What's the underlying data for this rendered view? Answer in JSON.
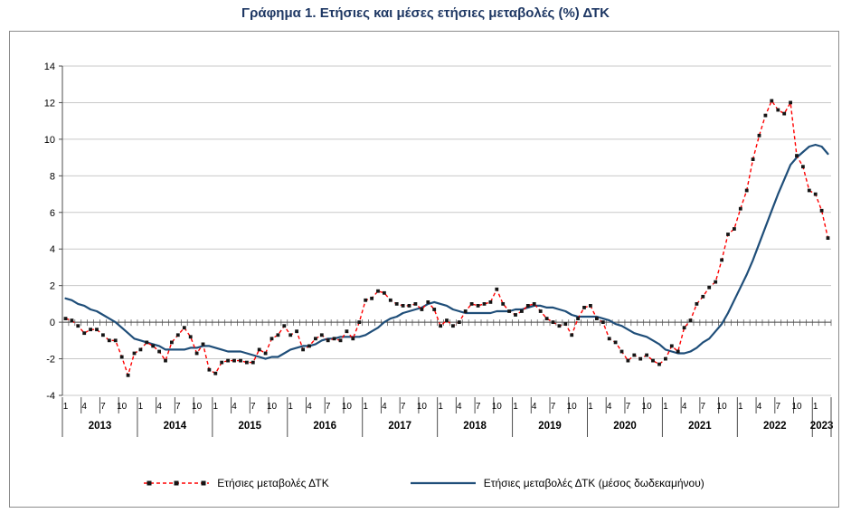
{
  "title": "Γράφημα 1. Ετήσιες και μέσες ετήσιες μεταβολές (%) ΔΤΚ",
  "legend": {
    "annual_label": "Ετήσιες μεταβολές ΔΤΚ",
    "average_label": "Ετήσιες μεταβολές ΔΤΚ (μέσος δωδεκαμήνου)"
  },
  "colors": {
    "title": "#1F3864",
    "annual_line": "#FF0000",
    "annual_marker": "#151515",
    "average_line": "#1F4E79",
    "gridline": "#C8C8C8",
    "axis": "#4D4D4D",
    "text": "#000000",
    "box_border": "#8C8C8C"
  },
  "chart_data": {
    "type": "line",
    "title": "Γράφημα 1. Ετήσιες και μέσες ετήσιες μεταβολές (%) ΔΤΚ",
    "xlabel": "",
    "ylabel": "",
    "ylim": [
      -4,
      14
    ],
    "ytick_step": 2,
    "grid": true,
    "legend_position": "bottom",
    "x_month_labels": [
      "1",
      "4",
      "7",
      "10"
    ],
    "years": [
      "2013",
      "2014",
      "2015",
      "2016",
      "2017",
      "2018",
      "2019",
      "2020",
      "2021",
      "2022",
      "2023"
    ],
    "months_per_year": [
      12,
      12,
      12,
      12,
      12,
      12,
      12,
      12,
      12,
      12,
      3
    ],
    "series": [
      {
        "name": "Ετήσιες μεταβολές ΔΤΚ",
        "style": "dashed-red-with-square-markers",
        "values": [
          0.2,
          0.1,
          -0.2,
          -0.6,
          -0.4,
          -0.4,
          -0.7,
          -1.0,
          -1.0,
          -1.9,
          -2.9,
          -1.7,
          -1.5,
          -1.1,
          -1.3,
          -1.6,
          -2.1,
          -1.1,
          -0.7,
          -0.3,
          -0.8,
          -1.7,
          -1.2,
          -2.6,
          -2.8,
          -2.2,
          -2.1,
          -2.1,
          -2.1,
          -2.2,
          -2.2,
          -1.5,
          -1.7,
          -0.9,
          -0.7,
          -0.2,
          -0.7,
          -0.5,
          -1.5,
          -1.3,
          -0.9,
          -0.7,
          -1.0,
          -0.9,
          -1.0,
          -0.5,
          -0.9,
          0.0,
          1.2,
          1.3,
          1.7,
          1.6,
          1.2,
          1.0,
          0.9,
          0.9,
          1.0,
          0.7,
          1.1,
          0.7,
          -0.2,
          0.1,
          -0.2,
          0.0,
          0.6,
          1.0,
          0.9,
          1.0,
          1.1,
          1.8,
          1.0,
          0.6,
          0.4,
          0.6,
          0.9,
          1.0,
          0.6,
          0.2,
          0.0,
          -0.2,
          -0.1,
          -0.7,
          0.2,
          0.8,
          0.9,
          0.2,
          0.0,
          -0.9,
          -1.1,
          -1.6,
          -2.1,
          -1.8,
          -2.0,
          -1.8,
          -2.1,
          -2.3,
          -2.0,
          -1.3,
          -1.6,
          -0.3,
          0.1,
          1.0,
          1.4,
          1.9,
          2.2,
          3.4,
          4.8,
          5.1,
          6.2,
          7.2,
          8.9,
          10.2,
          11.3,
          12.1,
          11.6,
          11.4,
          12.0,
          9.1,
          8.5,
          7.2,
          7.0,
          6.1,
          4.6
        ]
      },
      {
        "name": "Ετήσιες μεταβολές ΔΤΚ (μέσος δωδεκαμήνου)",
        "style": "solid-blue",
        "values": [
          1.3,
          1.2,
          1.0,
          0.9,
          0.7,
          0.6,
          0.4,
          0.2,
          0.0,
          -0.3,
          -0.6,
          -0.9,
          -1.0,
          -1.1,
          -1.2,
          -1.3,
          -1.5,
          -1.5,
          -1.5,
          -1.5,
          -1.4,
          -1.4,
          -1.3,
          -1.3,
          -1.4,
          -1.5,
          -1.6,
          -1.6,
          -1.6,
          -1.7,
          -1.8,
          -1.9,
          -2.0,
          -1.9,
          -1.9,
          -1.7,
          -1.5,
          -1.4,
          -1.3,
          -1.3,
          -1.2,
          -1.0,
          -0.9,
          -0.9,
          -0.8,
          -0.8,
          -0.8,
          -0.8,
          -0.7,
          -0.5,
          -0.3,
          0.0,
          0.2,
          0.3,
          0.5,
          0.6,
          0.7,
          0.8,
          1.0,
          1.1,
          1.0,
          0.9,
          0.7,
          0.6,
          0.5,
          0.5,
          0.5,
          0.5,
          0.5,
          0.6,
          0.6,
          0.6,
          0.7,
          0.7,
          0.8,
          0.9,
          0.9,
          0.8,
          0.8,
          0.7,
          0.6,
          0.4,
          0.3,
          0.3,
          0.3,
          0.3,
          0.2,
          0.1,
          -0.1,
          -0.2,
          -0.4,
          -0.6,
          -0.7,
          -0.8,
          -1.0,
          -1.2,
          -1.5,
          -1.6,
          -1.7,
          -1.7,
          -1.6,
          -1.4,
          -1.1,
          -0.9,
          -0.5,
          -0.1,
          0.5,
          1.2,
          1.9,
          2.6,
          3.4,
          4.3,
          5.2,
          6.1,
          7.0,
          7.8,
          8.6,
          9.0,
          9.3,
          9.6,
          9.7,
          9.6,
          9.2
        ]
      }
    ]
  }
}
